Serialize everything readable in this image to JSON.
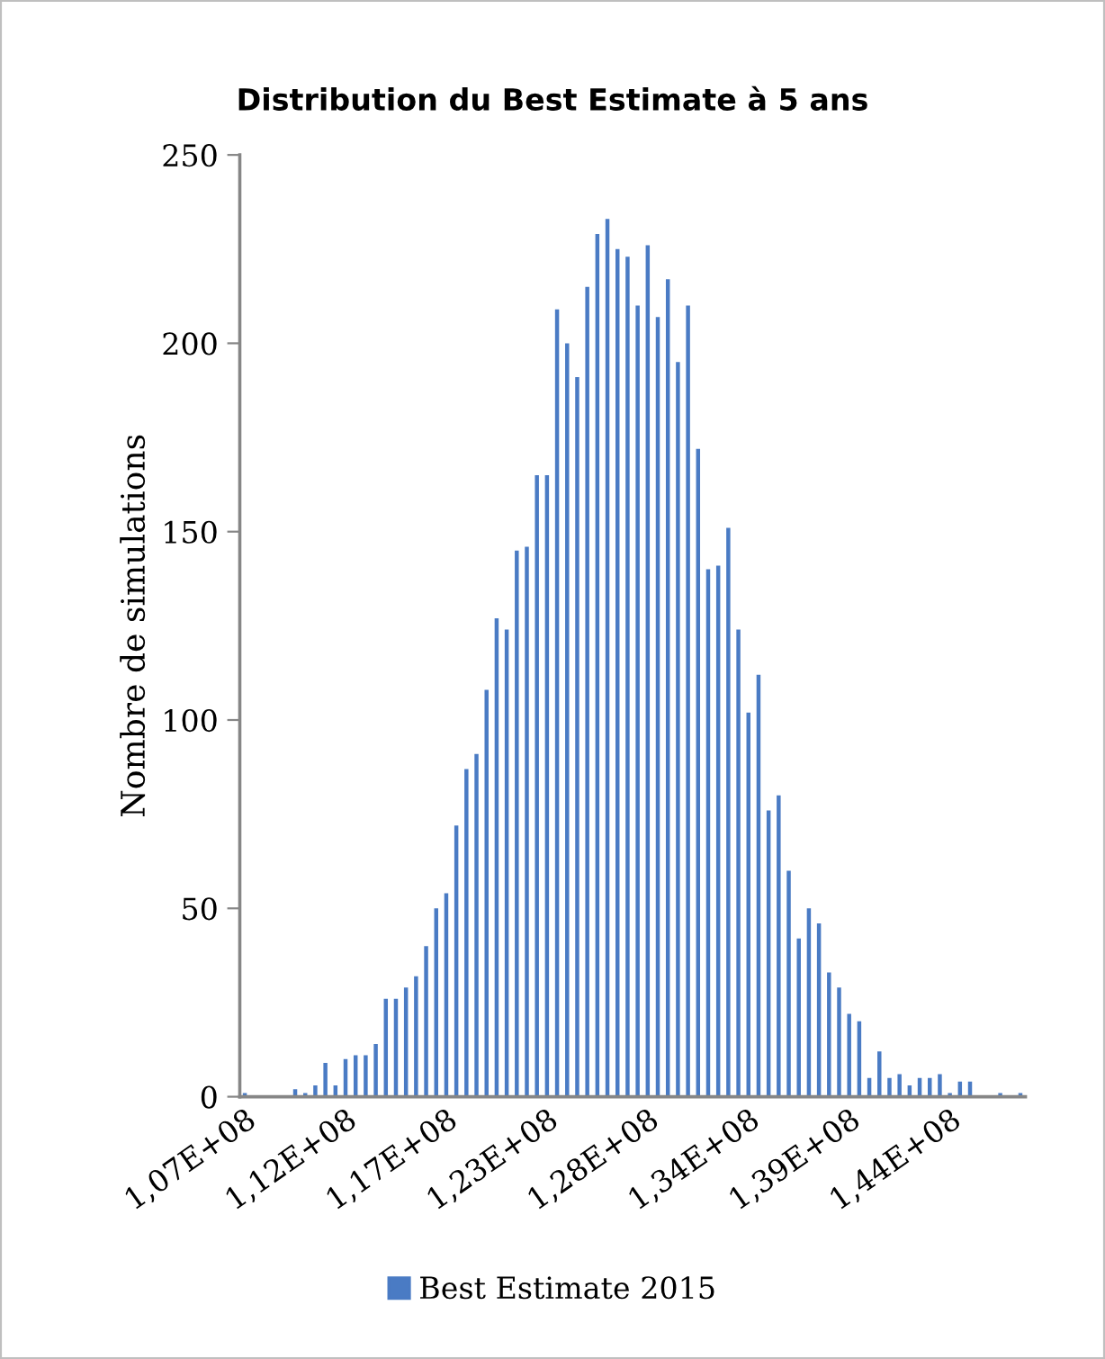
{
  "chart_data": {
    "type": "bar",
    "title": "Distribution du Best Estimate à 5 ans",
    "ylabel": "Nombre de simulations",
    "categories": [
      "1,07E+08",
      null,
      null,
      null,
      null,
      null,
      null,
      null,
      null,
      null,
      "1,12E+08",
      null,
      null,
      null,
      null,
      null,
      null,
      null,
      null,
      null,
      "1,17E+08",
      null,
      null,
      null,
      null,
      null,
      null,
      null,
      null,
      null,
      "1,23E+08",
      null,
      null,
      null,
      null,
      null,
      null,
      null,
      null,
      null,
      "1,28E+08",
      null,
      null,
      null,
      null,
      null,
      null,
      null,
      null,
      null,
      "1,34E+08",
      null,
      null,
      null,
      null,
      null,
      null,
      null,
      null,
      null,
      "1,39E+08",
      null,
      null,
      null,
      null,
      null,
      null,
      null,
      null,
      null,
      "1,44E+08",
      null,
      null,
      null,
      null,
      null,
      null,
      null
    ],
    "series": [
      {
        "name": "Best Estimate 2015",
        "color": "#4a7bc4",
        "values": [
          1,
          0,
          0,
          0,
          0,
          2,
          1,
          3,
          9,
          3,
          10,
          11,
          11,
          14,
          26,
          26,
          29,
          32,
          40,
          50,
          54,
          72,
          87,
          91,
          108,
          127,
          124,
          145,
          146,
          165,
          165,
          209,
          200,
          191,
          215,
          229,
          233,
          225,
          223,
          210,
          226,
          207,
          217,
          195,
          210,
          172,
          140,
          141,
          151,
          124,
          102,
          112,
          76,
          80,
          60,
          42,
          50,
          46,
          33,
          29,
          22,
          20,
          5,
          12,
          5,
          6,
          3,
          5,
          5,
          6,
          1,
          4,
          4,
          0,
          0,
          1,
          0,
          1
        ]
      }
    ],
    "ylim": [
      0,
      250
    ],
    "yticks": [
      0,
      50,
      100,
      150,
      200,
      250
    ],
    "grid": false,
    "legend": "bottom"
  }
}
